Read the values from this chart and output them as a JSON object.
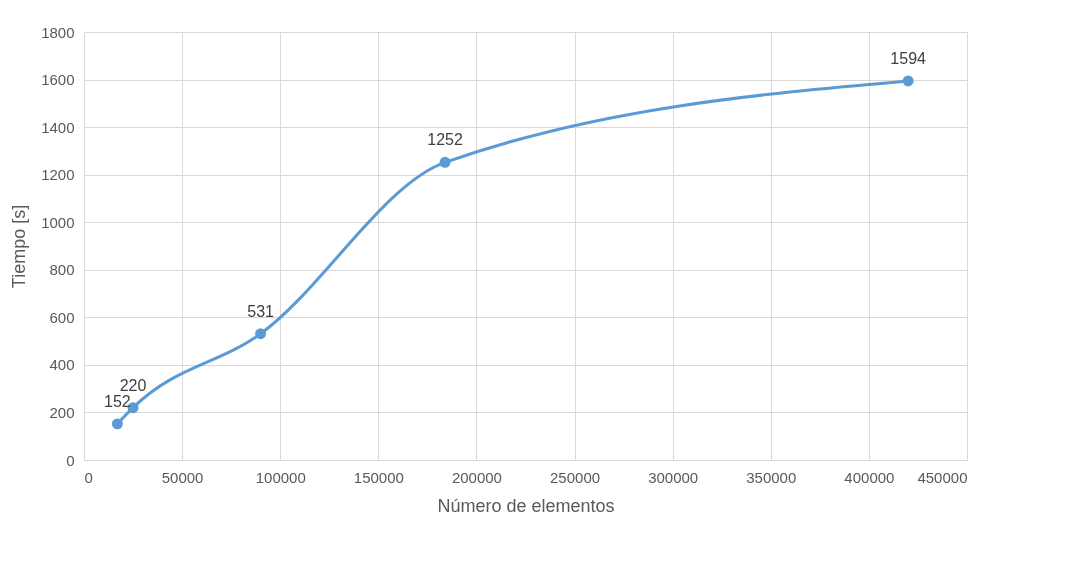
{
  "chart_data": {
    "type": "line",
    "xlabel": "Número de elementos",
    "ylabel": "Tiempo [s]",
    "x": [
      17000,
      25000,
      90000,
      184000,
      420000
    ],
    "series": [
      {
        "color": "#5b9bd5",
        "values": [
          152,
          220,
          531,
          1252,
          1594
        ]
      }
    ],
    "xlim": [
      0,
      450000
    ],
    "xticks": [
      0,
      50000,
      100000,
      150000,
      200000,
      250000,
      300000,
      350000,
      400000,
      450000
    ],
    "ylim": [
      0,
      1800
    ],
    "yticks": [
      0,
      200,
      400,
      600,
      800,
      1000,
      1200,
      1400,
      1600,
      1800
    ],
    "grid": true,
    "marker": "circle",
    "line_style": "solid",
    "data_labels": true
  }
}
